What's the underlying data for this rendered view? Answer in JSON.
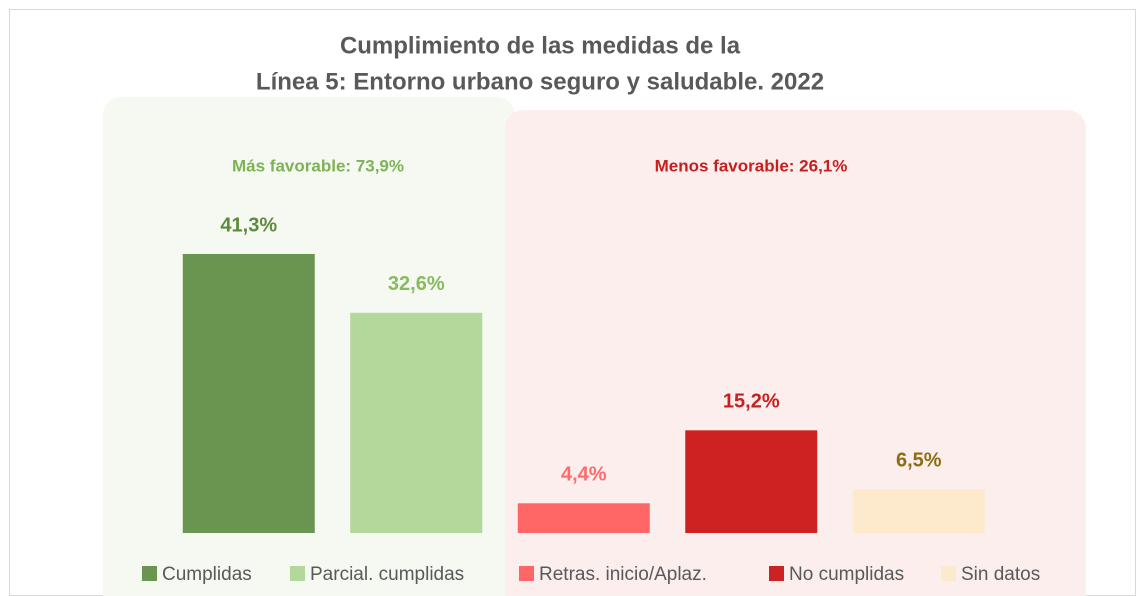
{
  "chart_data": {
    "type": "bar",
    "title": [
      "Cumplimiento de las medidas de la",
      "Línea 5: Entorno urbano seguro y saludable. 2022"
    ],
    "categories": [
      "Cumplidas",
      "Parcial. cumplidas",
      "Retras. inicio/Aplaz.",
      "No cumplidas",
      "Sin datos"
    ],
    "values": [
      41.3,
      32.6,
      4.4,
      15.2,
      6.5
    ],
    "value_labels": [
      "41,3%",
      "32,6%",
      "4,4%",
      "15,2%",
      "6,5%"
    ],
    "colors": [
      "#6a9550",
      "#b3d89b",
      "#ff6666",
      "#cc2222",
      "#fde9cc"
    ],
    "label_colors": [
      "#5d8a3c",
      "#86bb5e",
      "#ff6b6b",
      "#c62020",
      "#8c6d12"
    ],
    "annotations": [
      {
        "text": "Más favorable: 73,9%",
        "color": "#7db356"
      },
      {
        "text": "Menos favorable: 26,1%",
        "color": "#c81e1e"
      }
    ],
    "ylim": [
      0,
      45
    ],
    "legend": "bottom"
  }
}
